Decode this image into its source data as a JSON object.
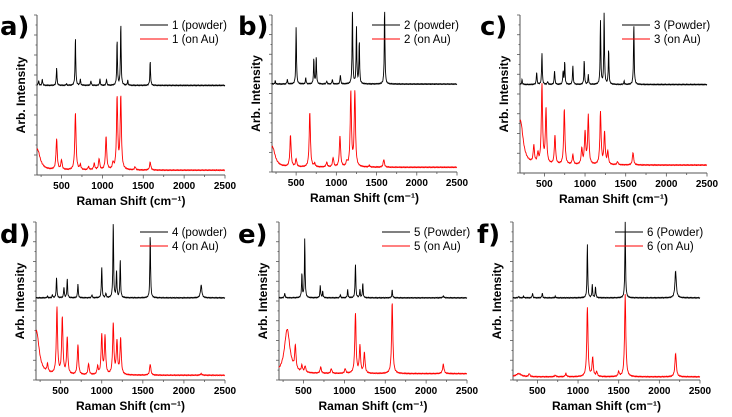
{
  "chart_data": [
    {
      "type": "line",
      "panel_label": "a)",
      "xlabel": "Raman Shift (cm⁻¹)",
      "ylabel": "Arb. Intensity",
      "xlim": [
        200,
        2500
      ],
      "xticks": [
        500,
        1000,
        1500,
        2000,
        2500
      ],
      "legend": "top-right",
      "series": [
        {
          "name": "1 (powder)",
          "color": "#000000",
          "baseline": 0.56,
          "peaks": [
            [
              220,
              0.03
            ],
            [
              265,
              0.04
            ],
            [
              440,
              0.11
            ],
            [
              560,
              0.01
            ],
            [
              670,
              0.3
            ],
            [
              730,
              0.04
            ],
            [
              860,
              0.03
            ],
            [
              970,
              0.04
            ],
            [
              1050,
              0.04
            ],
            [
              1180,
              0.28
            ],
            [
              1225,
              0.38
            ],
            [
              1310,
              0.03
            ],
            [
              1585,
              0.15
            ]
          ]
        },
        {
          "name": "1 (on Au)",
          "color": "#ff0000",
          "baseline": 0.03,
          "peaks": [
            [
              205,
              0.13
            ],
            [
              440,
              0.19
            ],
            [
              500,
              0.06
            ],
            [
              670,
              0.36
            ],
            [
              730,
              0.03
            ],
            [
              830,
              0.02
            ],
            [
              900,
              0.04
            ],
            [
              960,
              0.07
            ],
            [
              1045,
              0.21
            ],
            [
              1130,
              0.04
            ],
            [
              1180,
              0.45
            ],
            [
              1225,
              0.45
            ],
            [
              1400,
              0.02
            ],
            [
              1585,
              0.05
            ]
          ]
        }
      ]
    },
    {
      "type": "line",
      "panel_label": "b)",
      "xlabel": "Raman Shift (cm⁻¹)",
      "ylabel": "Arb. Intensity",
      "xlim": [
        200,
        2500
      ],
      "xticks": [
        500,
        1000,
        1500,
        2000,
        2500
      ],
      "legend": "top-right",
      "series": [
        {
          "name": "2 (powder)",
          "color": "#000000",
          "baseline": 0.56,
          "peaks": [
            [
              240,
              0.02
            ],
            [
              390,
              0.03
            ],
            [
              500,
              0.36
            ],
            [
              620,
              0.04
            ],
            [
              720,
              0.16
            ],
            [
              750,
              0.17
            ],
            [
              880,
              0.02
            ],
            [
              950,
              0.03
            ],
            [
              1050,
              0.06
            ],
            [
              1200,
              0.48
            ],
            [
              1250,
              0.36
            ],
            [
              1285,
              0.27
            ],
            [
              1600,
              0.48
            ]
          ]
        },
        {
          "name": "2 (on Au)",
          "color": "#ff0000",
          "baseline": 0.03,
          "peaks": [
            [
              205,
              0.13
            ],
            [
              430,
              0.2
            ],
            [
              500,
              0.05
            ],
            [
              670,
              0.35
            ],
            [
              730,
              0.02
            ],
            [
              880,
              0.03
            ],
            [
              960,
              0.06
            ],
            [
              1045,
              0.2
            ],
            [
              1130,
              0.03
            ],
            [
              1180,
              0.48
            ],
            [
              1230,
              0.48
            ],
            [
              1410,
              0.01
            ],
            [
              1590,
              0.05
            ]
          ]
        }
      ]
    },
    {
      "type": "line",
      "panel_label": "c)",
      "xlabel": "Raman Shift (cm⁻¹)",
      "ylabel": "Arb. Intensity",
      "xlim": [
        200,
        2500
      ],
      "xticks": [
        500,
        1000,
        1500,
        2000,
        2500
      ],
      "legend": "top-right",
      "series": [
        {
          "name": "3 (Powder)",
          "color": "#000000",
          "baseline": 0.56,
          "peaks": [
            [
              225,
              0.03
            ],
            [
              405,
              0.08
            ],
            [
              470,
              0.2
            ],
            [
              540,
              0.02
            ],
            [
              625,
              0.09
            ],
            [
              730,
              0.08
            ],
            [
              750,
              0.14
            ],
            [
              850,
              0.12
            ],
            [
              990,
              0.15
            ],
            [
              1040,
              0.06
            ],
            [
              1190,
              0.4
            ],
            [
              1235,
              0.45
            ],
            [
              1290,
              0.22
            ],
            [
              1480,
              0.02
            ],
            [
              1600,
              0.38
            ]
          ]
        },
        {
          "name": "3 (on Au)",
          "color": "#ff0000",
          "baseline": 0.05,
          "peaks": [
            [
              205,
              0.28
            ],
            [
              370,
              0.11
            ],
            [
              420,
              0.06
            ],
            [
              470,
              0.5
            ],
            [
              520,
              0.35
            ],
            [
              630,
              0.18
            ],
            [
              745,
              0.35
            ],
            [
              850,
              0.06
            ],
            [
              960,
              0.1
            ],
            [
              1000,
              0.2
            ],
            [
              1040,
              0.31
            ],
            [
              1190,
              0.33
            ],
            [
              1240,
              0.2
            ],
            [
              1280,
              0.08
            ],
            [
              1400,
              0.02
            ],
            [
              1590,
              0.08
            ]
          ]
        }
      ]
    },
    {
      "type": "line",
      "panel_label": "d)",
      "xlabel": "Raman Shift (cm⁻¹)",
      "ylabel": "Arb. Intensity",
      "xlim": [
        200,
        2500
      ],
      "xticks": [
        500,
        1000,
        1500,
        2000,
        2500
      ],
      "legend": "top-right",
      "series": [
        {
          "name": "4 (powder)",
          "color": "#000000",
          "baseline": 0.52,
          "peaks": [
            [
              340,
              0.01
            ],
            [
              400,
              0.02
            ],
            [
              450,
              0.13
            ],
            [
              540,
              0.07
            ],
            [
              580,
              0.12
            ],
            [
              710,
              0.09
            ],
            [
              880,
              0.02
            ],
            [
              1000,
              0.2
            ],
            [
              1050,
              0.03
            ],
            [
              1140,
              0.48
            ],
            [
              1180,
              0.17
            ],
            [
              1225,
              0.24
            ],
            [
              1590,
              0.4
            ],
            [
              2210,
              0.08
            ]
          ]
        },
        {
          "name": "4 (on Au)",
          "color": "#ff0000",
          "baseline": 0.03,
          "peaks": [
            [
              205,
              0.28
            ],
            [
              340,
              0.05
            ],
            [
              455,
              0.42
            ],
            [
              520,
              0.36
            ],
            [
              580,
              0.23
            ],
            [
              710,
              0.19
            ],
            [
              840,
              0.07
            ],
            [
              950,
              0.05
            ],
            [
              1000,
              0.25
            ],
            [
              1040,
              0.24
            ],
            [
              1140,
              0.32
            ],
            [
              1185,
              0.21
            ],
            [
              1230,
              0.23
            ],
            [
              1590,
              0.07
            ],
            [
              2210,
              0.01
            ]
          ]
        }
      ]
    },
    {
      "type": "line",
      "panel_label": "e)",
      "xlabel": "Raman Shift (cm⁻¹)",
      "ylabel": "Arb. Intensity",
      "xlim": [
        200,
        2500
      ],
      "xticks": [
        500,
        1000,
        1500,
        2000,
        2500
      ],
      "legend": "top-right",
      "series": [
        {
          "name": "5 (Powder)",
          "color": "#000000",
          "baseline": 0.52,
          "peaks": [
            [
              270,
              0.03
            ],
            [
              480,
              0.15
            ],
            [
              515,
              0.37
            ],
            [
              705,
              0.08
            ],
            [
              735,
              0.04
            ],
            [
              950,
              0.02
            ],
            [
              1040,
              0.05
            ],
            [
              1135,
              0.22
            ],
            [
              1190,
              0.05
            ],
            [
              1225,
              0.09
            ],
            [
              1585,
              0.05
            ],
            [
              2210,
              0.01
            ]
          ]
        },
        {
          "name": "5 (on Au)",
          "color": "#ff0000",
          "baseline": 0.04,
          "peaks": [
            [
              300,
              0.28
            ],
            [
              400,
              0.15
            ],
            [
              480,
              0.04
            ],
            [
              520,
              0.04
            ],
            [
              710,
              0.04
            ],
            [
              840,
              0.03
            ],
            [
              1010,
              0.03
            ],
            [
              1135,
              0.38
            ],
            [
              1190,
              0.17
            ],
            [
              1245,
              0.13
            ],
            [
              1585,
              0.45
            ],
            [
              2210,
              0.06
            ]
          ]
        }
      ]
    },
    {
      "type": "line",
      "panel_label": "f)",
      "xlabel": "Raman Shift (cm⁻¹)",
      "ylabel": "Arb. Intensity",
      "xlim": [
        200,
        2500
      ],
      "xticks": [
        500,
        1000,
        1500,
        2000,
        2500
      ],
      "legend": "top-right",
      "series": [
        {
          "name": "6 (Powder)",
          "color": "#000000",
          "baseline": 0.52,
          "peaks": [
            [
              270,
              0.01
            ],
            [
              330,
              0.01
            ],
            [
              440,
              0.03
            ],
            [
              560,
              0.03
            ],
            [
              720,
              0.01
            ],
            [
              1115,
              0.34
            ],
            [
              1175,
              0.08
            ],
            [
              1215,
              0.07
            ],
            [
              1580,
              0.48
            ],
            [
              2200,
              0.17
            ]
          ]
        },
        {
          "name": "6 (on Au)",
          "color": "#ff0000",
          "baseline": 0.02,
          "peaks": [
            [
              270,
              0.02
            ],
            [
              400,
              0.02
            ],
            [
              720,
              0.01
            ],
            [
              850,
              0.02
            ],
            [
              1115,
              0.44
            ],
            [
              1180,
              0.12
            ],
            [
              1230,
              0.03
            ],
            [
              1500,
              0.03
            ],
            [
              1580,
              0.52
            ],
            [
              2200,
              0.15
            ]
          ]
        }
      ]
    }
  ]
}
